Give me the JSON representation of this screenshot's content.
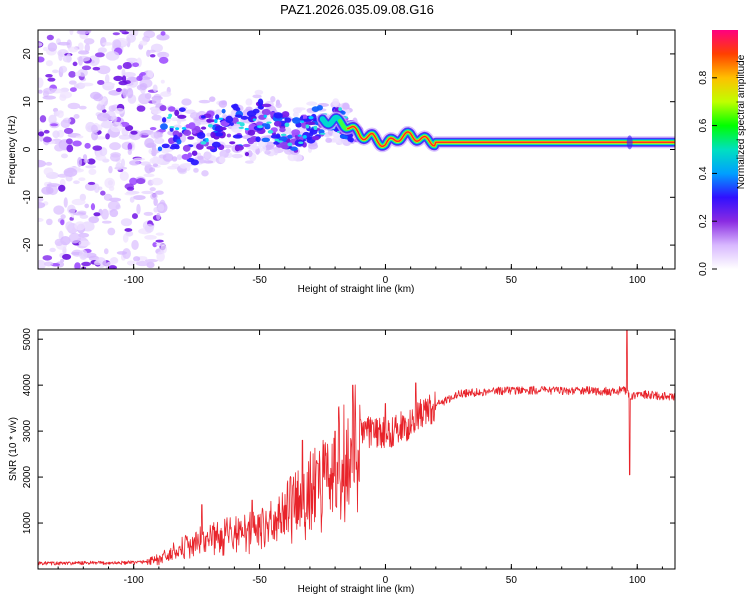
{
  "figure": {
    "title": "PAZ1.2026.035.09.08.G16"
  },
  "colors": {
    "snr_line": "#e8232a",
    "trace_core": "#ff2d1f",
    "background": "#ffffff"
  },
  "chart_data": [
    {
      "type": "heatmap",
      "name": "spectrogram",
      "xlabel": "Height of straight line (km)",
      "ylabel": "Frequency (Hz)",
      "xlim": [
        -138,
        115
      ],
      "ylim": [
        -25,
        25
      ],
      "xticks": [
        -100,
        -50,
        0,
        50,
        100
      ],
      "yticks": [
        -20,
        -10,
        0,
        10,
        20
      ],
      "colorbar": {
        "label": "Normalized spectral amplitude",
        "range": [
          0,
          1
        ],
        "ticks": [
          "0.0",
          "0.2",
          "0.4",
          "0.6",
          "0.8"
        ],
        "colormap": [
          "#ffffff",
          "#d8b8ff",
          "#8a2be2",
          "#3010ff",
          "#00a0ff",
          "#00e0c0",
          "#00ff00",
          "#c0ff00",
          "#ffc000",
          "#ff4000",
          "#ff0080"
        ]
      },
      "ridge": {
        "x": [
          -90,
          -85,
          -80,
          -75,
          -70,
          -65,
          -60,
          -55,
          -50,
          -45,
          -40,
          -35,
          -30,
          -25,
          -20,
          -15,
          -10,
          -5,
          0,
          5,
          10,
          15,
          20,
          30,
          50,
          80,
          100,
          115
        ],
        "y": [
          5.5,
          4.5,
          3,
          2,
          3,
          4,
          5,
          3,
          6,
          5,
          4,
          3,
          5,
          6,
          6,
          5,
          3,
          2.5,
          1,
          2.5,
          3,
          2,
          1.5,
          1.5,
          1.5,
          1.5,
          1.5,
          1.5
        ]
      },
      "strong_band": {
        "x_start": -10,
        "x_end": 115,
        "center_hz": 1.5
      }
    },
    {
      "type": "line",
      "name": "snr",
      "xlabel": "Height of straight line (km)",
      "ylabel": "SNR (10 * v/v)",
      "xlim": [
        -138,
        115
      ],
      "ylim": [
        0,
        5200
      ],
      "xticks": [
        -100,
        -50,
        0,
        50,
        100
      ],
      "yticks": [
        1000,
        2000,
        3000,
        4000,
        5000
      ],
      "series": [
        {
          "x": [
            -138,
            -130,
            -120,
            -110,
            -100,
            -95,
            -90,
            -85,
            -80,
            -75,
            -70,
            -65,
            -60,
            -55,
            -50,
            -45,
            -40,
            -35,
            -30,
            -25,
            -20,
            -15,
            -10,
            -5,
            0,
            5,
            10,
            15,
            20,
            25,
            30,
            40,
            50,
            60,
            70,
            80,
            90,
            95,
            97,
            98,
            100,
            105,
            110,
            115
          ],
          "values": [
            130,
            120,
            130,
            130,
            140,
            160,
            230,
            380,
            500,
            620,
            700,
            760,
            800,
            850,
            950,
            1100,
            1300,
            1500,
            1800,
            2100,
            2400,
            2700,
            2900,
            3000,
            2950,
            3050,
            3150,
            3400,
            3550,
            3700,
            3820,
            3860,
            3890,
            3890,
            3880,
            3880,
            3860,
            3900,
            3800,
            3750,
            3800,
            3790,
            3760,
            3760
          ],
          "spikes": [
            {
              "x": -73,
              "y": 1400
            },
            {
              "x": -53,
              "y": 1500
            },
            {
              "x": -33,
              "y": 2800
            },
            {
              "x": -27,
              "y": 2300
            },
            {
              "x": -20,
              "y": 3000
            },
            {
              "x": -13,
              "y": 4000
            },
            {
              "x": -10,
              "y": 3250
            },
            {
              "x": 0,
              "y": 3600
            },
            {
              "x": 12,
              "y": 4050
            },
            {
              "x": 96,
              "y": 5200
            },
            {
              "x": 97,
              "y": 2050
            }
          ]
        }
      ]
    }
  ]
}
